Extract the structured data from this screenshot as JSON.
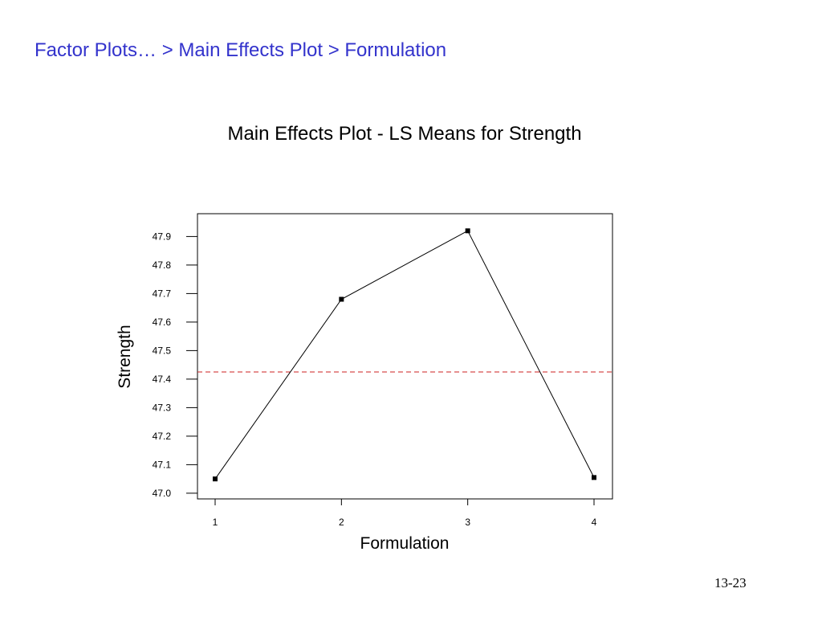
{
  "slide": {
    "breadcrumb": "Factor Plots… > Main Effects Plot > Formulation",
    "page_number": "13-23"
  },
  "colors": {
    "breadcrumb": "#3333cc",
    "series": "#000000",
    "reference_line": "#cc2222"
  },
  "chart_data": {
    "type": "line",
    "title": "Main Effects Plot - LS Means for Strength",
    "xlabel": "Formulation",
    "ylabel": "Strength",
    "categories": [
      "1",
      "2",
      "3",
      "4"
    ],
    "values": [
      47.05,
      47.68,
      47.92,
      47.055
    ],
    "reference_line": {
      "y": 47.425,
      "style": "dashed"
    },
    "y_ticks": [
      "47.0",
      "47.1",
      "47.2",
      "47.3",
      "47.4",
      "47.5",
      "47.6",
      "47.7",
      "47.8",
      "47.9"
    ],
    "ylim": [
      46.98,
      47.98
    ],
    "grid": false,
    "legend": false
  }
}
